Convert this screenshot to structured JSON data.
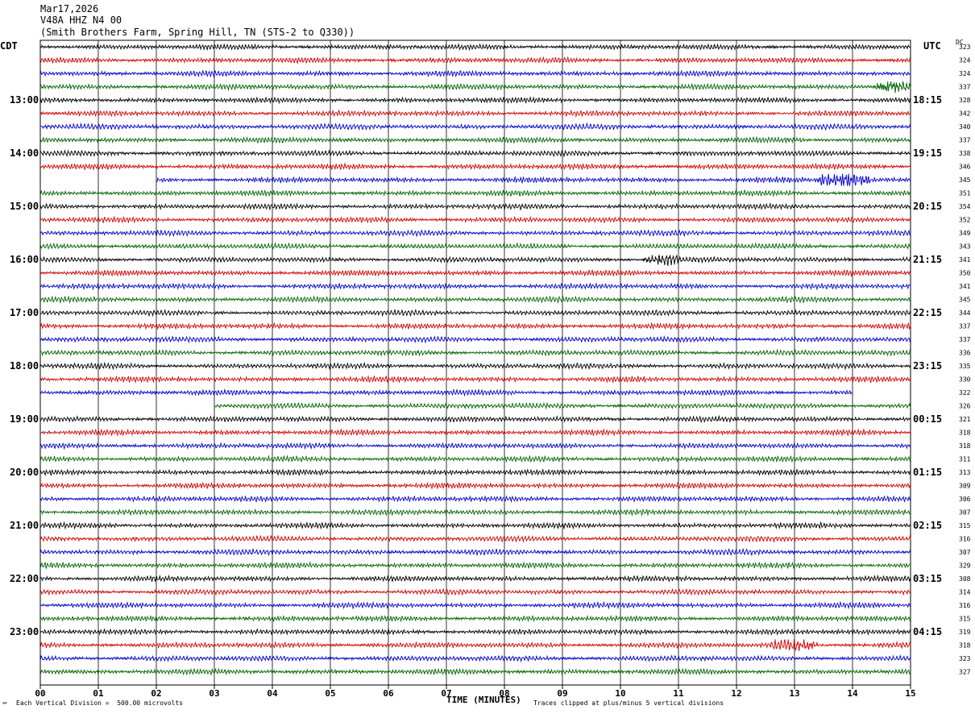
{
  "header": {
    "date": "Mar17,2026",
    "station": "V48A HHZ N4 00",
    "location": "(Smith Brothers Farm, Spring Hill, TN (STS-2 to Q330))"
  },
  "left_tz": "CDT",
  "right_tz": "UTC",
  "dc_label": "DC",
  "footer": {
    "scale_note": "Each Vertical Division =  500.00 microvolts",
    "clip_note": "Traces clipped at plus/minus 5 vertical divisions",
    "corner_mark": "℠"
  },
  "chart_data": {
    "type": "line",
    "subtype": "helicorder",
    "xlabel": "TIME (MINUTES)",
    "x_ticks": [
      "00",
      "01",
      "02",
      "03",
      "04",
      "05",
      "06",
      "07",
      "08",
      "09",
      "10",
      "11",
      "12",
      "13",
      "14",
      "15"
    ],
    "xlim": [
      0,
      15
    ],
    "rows": 48,
    "trace_colors": [
      "#000000",
      "#d40000",
      "#0000d0",
      "#006400"
    ],
    "left_hour_labels": [
      "13:00",
      "14:00",
      "15:00",
      "16:00",
      "17:00",
      "18:00",
      "19:00",
      "20:00",
      "21:00",
      "22:00",
      "23:00"
    ],
    "right_hour_labels": [
      "18:15",
      "19:15",
      "20:15",
      "21:15",
      "22:15",
      "23:15",
      "00:15",
      "01:15",
      "02:15",
      "03:15",
      "04:15"
    ],
    "hour_label_first_row": 4,
    "dc_offsets": [
      323,
      324,
      324,
      337,
      328,
      342,
      340,
      337,
      338,
      346,
      345,
      351,
      354,
      352,
      349,
      343,
      341,
      350,
      341,
      345,
      344,
      337,
      337,
      336,
      335,
      330,
      322,
      326,
      321,
      318,
      318,
      311,
      313,
      309,
      306,
      307,
      315,
      316,
      307,
      329,
      308,
      314,
      316,
      315,
      319,
      318,
      323,
      327
    ],
    "events": [
      {
        "row": 3,
        "start_min": 14.4,
        "end_min": 15.0,
        "amp": 2.0
      },
      {
        "row": 10,
        "start_min": 13.4,
        "end_min": 14.3,
        "amp": 2.3
      },
      {
        "row": 16,
        "start_min": 10.4,
        "end_min": 11.0,
        "amp": 1.5
      },
      {
        "row": 45,
        "start_min": 12.6,
        "end_min": 13.4,
        "amp": 1.4
      }
    ],
    "gaps": [
      {
        "row": 10,
        "start_min": 0.0,
        "end_min": 2.0
      },
      {
        "row": 26,
        "start_min": 14.0,
        "end_min": 15.0
      },
      {
        "row": 27,
        "start_min": 0.0,
        "end_min": 3.0
      }
    ]
  }
}
